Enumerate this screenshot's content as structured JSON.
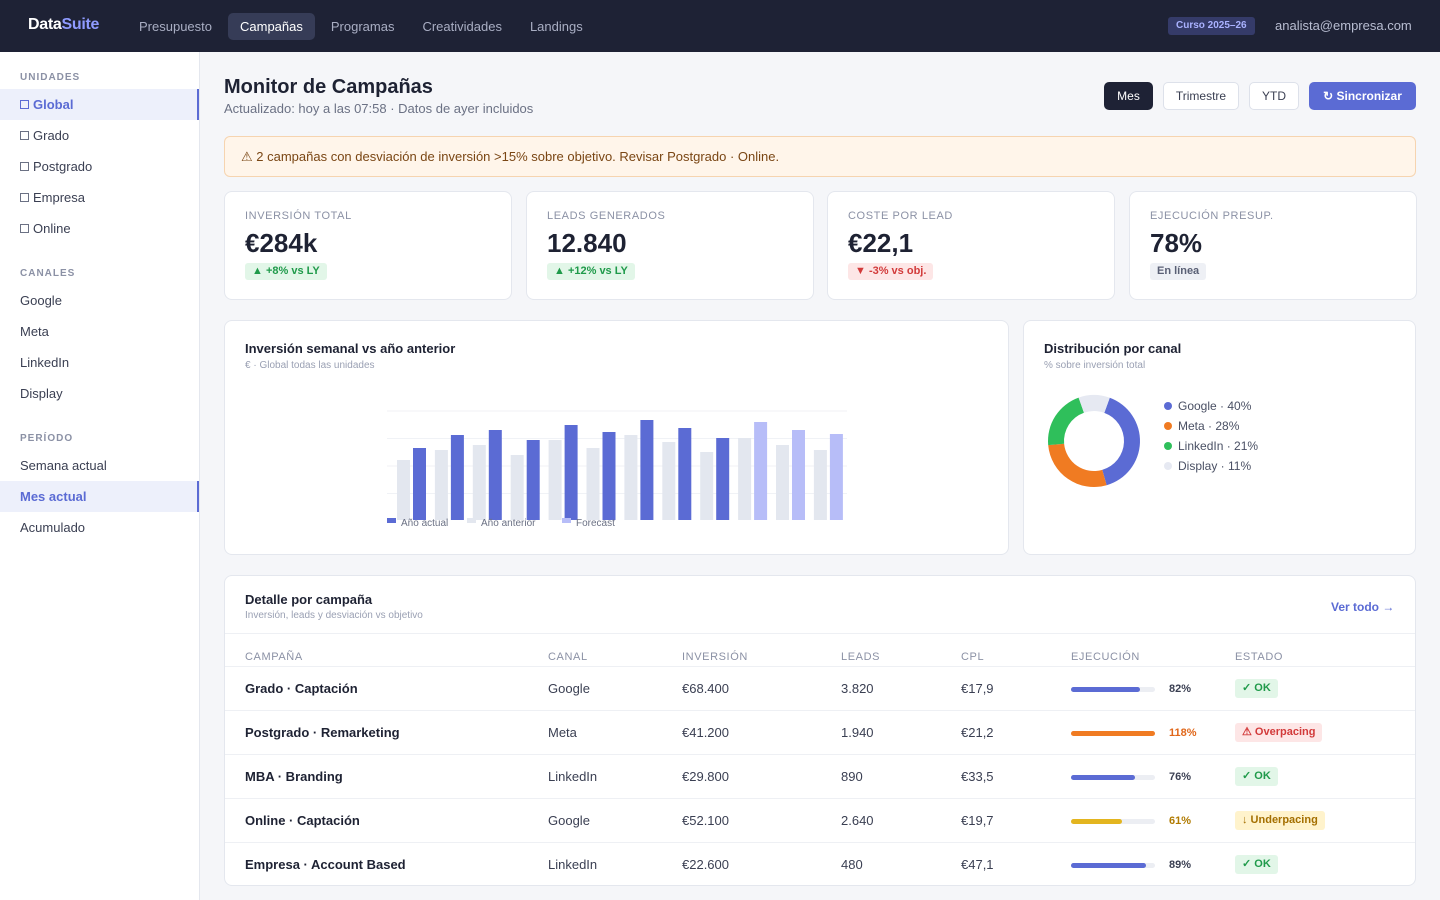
{
  "brand": {
    "part1": "Data",
    "part2": "Suite"
  },
  "nav": [
    "Presupuesto",
    "Campañas",
    "Programas",
    "Creatividades",
    "Landings"
  ],
  "year_badge": "Curso 2025–26",
  "user_email": "analista@empresa.com",
  "sidebar": {
    "units_title": "UNIDADES",
    "units": [
      "Global",
      "Grado",
      "Postgrado",
      "Empresa",
      "Online"
    ],
    "channels_title": "CANALES",
    "channels": [
      "Google",
      "Meta",
      "LinkedIn",
      "Display"
    ],
    "period_title": "PERÍODO",
    "periods": [
      "Semana actual",
      "Mes actual",
      "Acumulado"
    ]
  },
  "header": {
    "title": "Monitor de Campañas",
    "subtitle": "Actualizado: hoy a las 07:58 · Datos de ayer incluidos",
    "periods": [
      "Mes",
      "Trimestre",
      "YTD"
    ],
    "sync": "↻ Sincronizar"
  },
  "alert": "⚠ 2 campañas con desviación de inversión >15% sobre objetivo. Revisar Postgrado · Online.",
  "kpis": [
    {
      "label": "INVERSIÓN TOTAL",
      "value": "€284k",
      "delta": "▲ +8% vs LY",
      "tone": "pos"
    },
    {
      "label": "LEADS GENERADOS",
      "value": "12.840",
      "delta": "▲ +12% vs LY",
      "tone": "pos"
    },
    {
      "label": "COSTE POR LEAD",
      "value": "€22,1",
      "delta": "▼ -3% vs obj.",
      "tone": "neg"
    },
    {
      "label": "EJECUCIÓN PRESUP.",
      "value": "78%",
      "delta": "En línea",
      "tone": "neu"
    }
  ],
  "weekly_chart": {
    "title": "Inversión semanal vs año anterior",
    "subtitle": "€ · Global todas las unidades",
    "legend": [
      "Año actual",
      "Año anterior",
      "Forecast"
    ]
  },
  "channel_chart": {
    "title": "Distribución por canal",
    "subtitle": "% sobre inversión total",
    "legend": [
      "Google · 40%",
      "Meta · 28%",
      "LinkedIn · 21%",
      "Display · 11%"
    ]
  },
  "chart_data": [
    {
      "type": "bar",
      "ylim": [
        0,
        110
      ],
      "grid": true,
      "legend_position": "bottom-left",
      "series": [
        {
          "name": "Año anterior",
          "values": [
            60,
            70,
            75,
            65,
            80,
            72,
            85,
            78,
            68,
            82,
            75,
            70
          ]
        },
        {
          "name": "Año actual",
          "values": [
            72,
            85,
            90,
            80,
            95,
            88,
            100,
            92,
            82,
            null,
            null,
            null
          ]
        },
        {
          "name": "Forecast",
          "values": [
            null,
            null,
            null,
            null,
            null,
            null,
            null,
            null,
            null,
            98,
            90,
            86
          ]
        }
      ]
    },
    {
      "type": "pie",
      "categories": [
        "Google",
        "Meta",
        "LinkedIn",
        "Display"
      ],
      "values": [
        40,
        28,
        21,
        11
      ],
      "colors": [
        "#5b6bd4",
        "#f07b22",
        "#2fbf5b",
        "#e6e9f2"
      ]
    }
  ],
  "table": {
    "title": "Detalle por campaña",
    "subtitle": "Inversión, leads y desviación vs objetivo",
    "see_all": "Ver todo →",
    "headers": [
      "CAMPAÑA",
      "CANAL",
      "INVERSIÓN",
      "LEADS",
      "CPL",
      "EJECUCIÓN",
      "ESTADO"
    ],
    "rows": [
      {
        "name": "Grado · Captación",
        "channel": "Google",
        "spend": "€68.400",
        "leads": "3.820",
        "cpl": "€17,9",
        "exec_pct": "82%",
        "exec": 0.82,
        "bar_color": "#5b6bd4",
        "pct_color": "#3a3f52",
        "status": "✓ OK",
        "status_tone": "ok"
      },
      {
        "name": "Postgrado · Remarketing",
        "channel": "Meta",
        "spend": "€41.200",
        "leads": "1.940",
        "cpl": "€21,2",
        "exec_pct": "118%",
        "exec": 1.0,
        "bar_color": "#f07b22",
        "pct_color": "#e0671a",
        "status": "⚠ Overpacing",
        "status_tone": "over"
      },
      {
        "name": "MBA · Branding",
        "channel": "LinkedIn",
        "spend": "€29.800",
        "leads": "890",
        "cpl": "€33,5",
        "exec_pct": "76%",
        "exec": 0.76,
        "bar_color": "#5b6bd4",
        "pct_color": "#3a3f52",
        "status": "✓ OK",
        "status_tone": "ok"
      },
      {
        "name": "Online · Captación",
        "channel": "Google",
        "spend": "€52.100",
        "leads": "2.640",
        "cpl": "€19,7",
        "exec_pct": "61%",
        "exec": 0.61,
        "bar_color": "#e3b51f",
        "pct_color": "#b07a00",
        "status": "↓ Underpacing",
        "status_tone": "under"
      },
      {
        "name": "Empresa · Account Based",
        "channel": "LinkedIn",
        "spend": "€22.600",
        "leads": "480",
        "cpl": "€47,1",
        "exec_pct": "89%",
        "exec": 0.89,
        "bar_color": "#5b6bd4",
        "pct_color": "#3a3f52",
        "status": "✓ OK",
        "status_tone": "ok"
      }
    ]
  }
}
